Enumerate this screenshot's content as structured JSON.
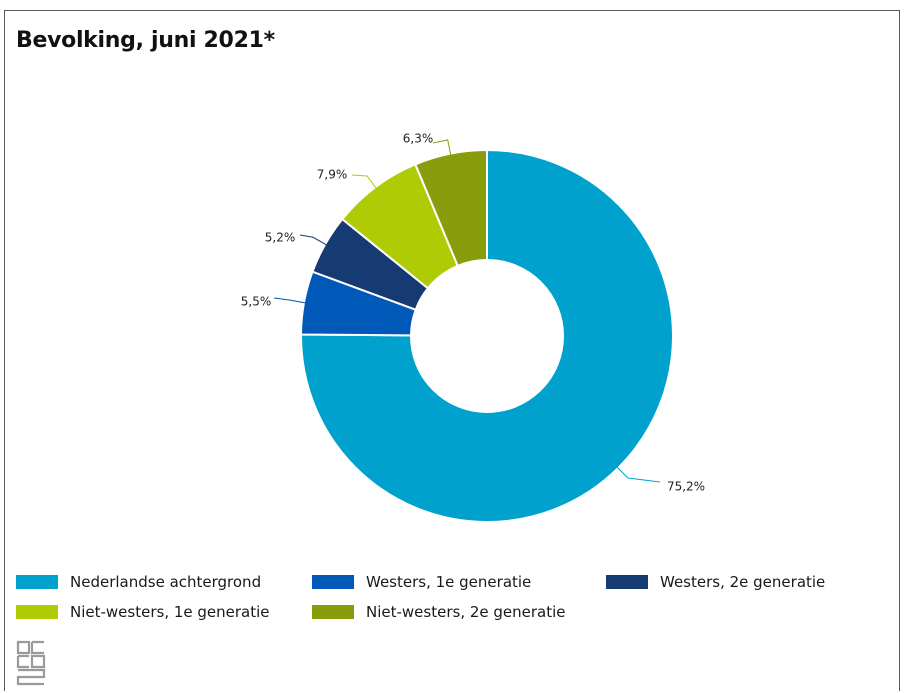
{
  "chart_data": {
    "type": "pie",
    "title": "Bevolking, juni 2021*",
    "donut": true,
    "slices": [
      {
        "name": "Nederlandse achtergrond",
        "value": 75.2,
        "label": "75,2%",
        "color": "#00a1cd"
      },
      {
        "name": "Westers, 1e generatie",
        "value": 5.5,
        "label": "5,5%",
        "color": "#0058b8"
      },
      {
        "name": "Westers, 2e generatie",
        "value": 5.2,
        "label": "5,2%",
        "color": "#163a72"
      },
      {
        "name": "Niet-westers, 1e generatie",
        "value": 7.9,
        "label": "7,9%",
        "color": "#afcb05"
      },
      {
        "name": "Niet-westers, 2e generatie",
        "value": 6.3,
        "label": "6,3%",
        "color": "#899d0c"
      }
    ],
    "legend_placement": "bottom"
  },
  "logo": {
    "icon": "cbs-logo-icon"
  }
}
